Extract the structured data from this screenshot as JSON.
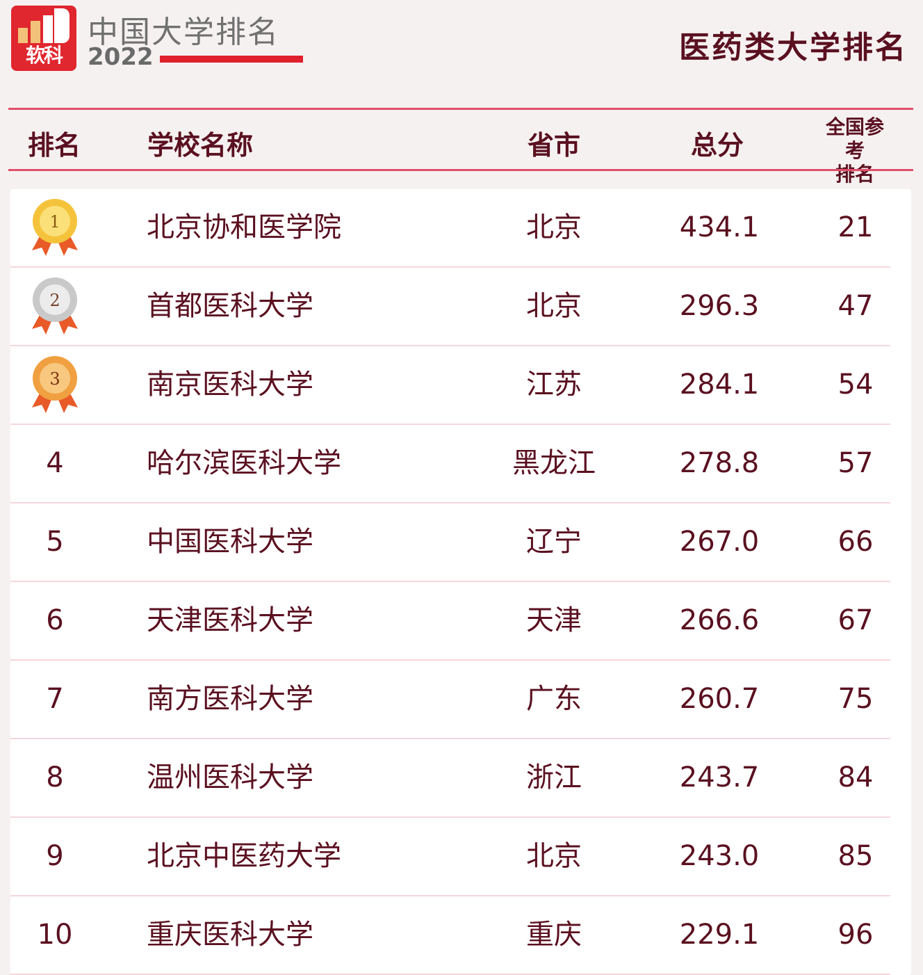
{
  "logo": {
    "text": "软科"
  },
  "brand": {
    "name": "中国大学排名",
    "year": "2022"
  },
  "title": "医药类大学排名",
  "colors": {
    "text": "#5a1020",
    "accent": "#e0506a",
    "logo_red": "#e0262e",
    "gold": "#f5c33b",
    "silver": "#cfcfcf",
    "bronze": "#f0a040"
  },
  "headers": {
    "rank": "排名",
    "name": "学校名称",
    "province": "省市",
    "score": "总分",
    "national_line1": "全国参考",
    "national_line2": "排名"
  },
  "rows": [
    {
      "rank": "1",
      "name": "北京协和医学院",
      "province": "北京",
      "score": "434.1",
      "national": "21",
      "medal": "gold"
    },
    {
      "rank": "2",
      "name": "首都医科大学",
      "province": "北京",
      "score": "296.3",
      "national": "47",
      "medal": "silver"
    },
    {
      "rank": "3",
      "name": "南京医科大学",
      "province": "江苏",
      "score": "284.1",
      "national": "54",
      "medal": "bronze"
    },
    {
      "rank": "4",
      "name": "哈尔滨医科大学",
      "province": "黑龙江",
      "score": "278.8",
      "national": "57"
    },
    {
      "rank": "5",
      "name": "中国医科大学",
      "province": "辽宁",
      "score": "267.0",
      "national": "66"
    },
    {
      "rank": "6",
      "name": "天津医科大学",
      "province": "天津",
      "score": "266.6",
      "national": "67"
    },
    {
      "rank": "7",
      "name": "南方医科大学",
      "province": "广东",
      "score": "260.7",
      "national": "75"
    },
    {
      "rank": "8",
      "name": "温州医科大学",
      "province": "浙江",
      "score": "243.7",
      "national": "84"
    },
    {
      "rank": "9",
      "name": "北京中医药大学",
      "province": "北京",
      "score": "243.0",
      "national": "85"
    },
    {
      "rank": "10",
      "name": "重庆医科大学",
      "province": "重庆",
      "score": "229.1",
      "national": "96"
    }
  ]
}
